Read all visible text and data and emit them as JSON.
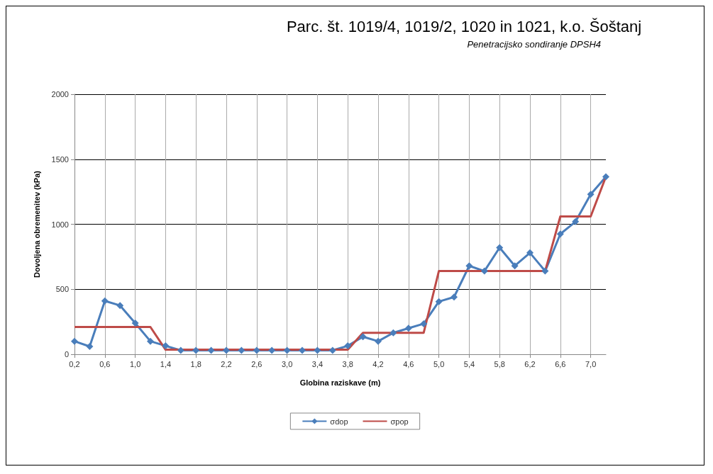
{
  "chart_data": {
    "type": "line",
    "title": "Parc. št. 1019/4, 1019/2, 1020 in 1021, k.o. Šoštanj",
    "subtitle": "Penetracijsko sondiranje DPSH4",
    "xlabel": "Globina raziskave (m)",
    "ylabel": "Dovoljena obremenitev (kPa)",
    "categories": [
      "0,2",
      null,
      "0,6",
      null,
      "1,0",
      null,
      "1,4",
      null,
      "1,8",
      null,
      "2,2",
      null,
      "2,6",
      null,
      "3,0",
      null,
      "3,4",
      null,
      "3,8",
      null,
      "4,2",
      null,
      "4,6",
      null,
      "5,0",
      null,
      "5,4",
      null,
      "5,8",
      null,
      "6,2",
      null,
      "6,6",
      null,
      "7,0",
      null
    ],
    "series": [
      {
        "name": "σdop",
        "color": "#4a7ebb",
        "marker": "diamond",
        "values": [
          100,
          60,
          410,
          375,
          240,
          100,
          65,
          30,
          30,
          30,
          30,
          30,
          30,
          30,
          30,
          30,
          30,
          30,
          65,
          135,
          100,
          165,
          200,
          235,
          405,
          440,
          680,
          640,
          820,
          680,
          780,
          640,
          925,
          1020,
          1230,
          1365
        ]
      },
      {
        "name": "σpop",
        "color": "#be4b48",
        "marker": "none",
        "values": [
          210,
          210,
          210,
          210,
          210,
          210,
          35,
          35,
          35,
          35,
          35,
          35,
          35,
          35,
          35,
          35,
          35,
          35,
          35,
          165,
          165,
          165,
          165,
          165,
          640,
          640,
          640,
          640,
          640,
          640,
          640,
          640,
          1060,
          1060,
          1060,
          1365
        ]
      }
    ],
    "ylim": [
      0,
      2000
    ],
    "yticks": [
      0,
      500,
      1000,
      1500,
      2000
    ],
    "grid": true,
    "legend": "bottom"
  }
}
